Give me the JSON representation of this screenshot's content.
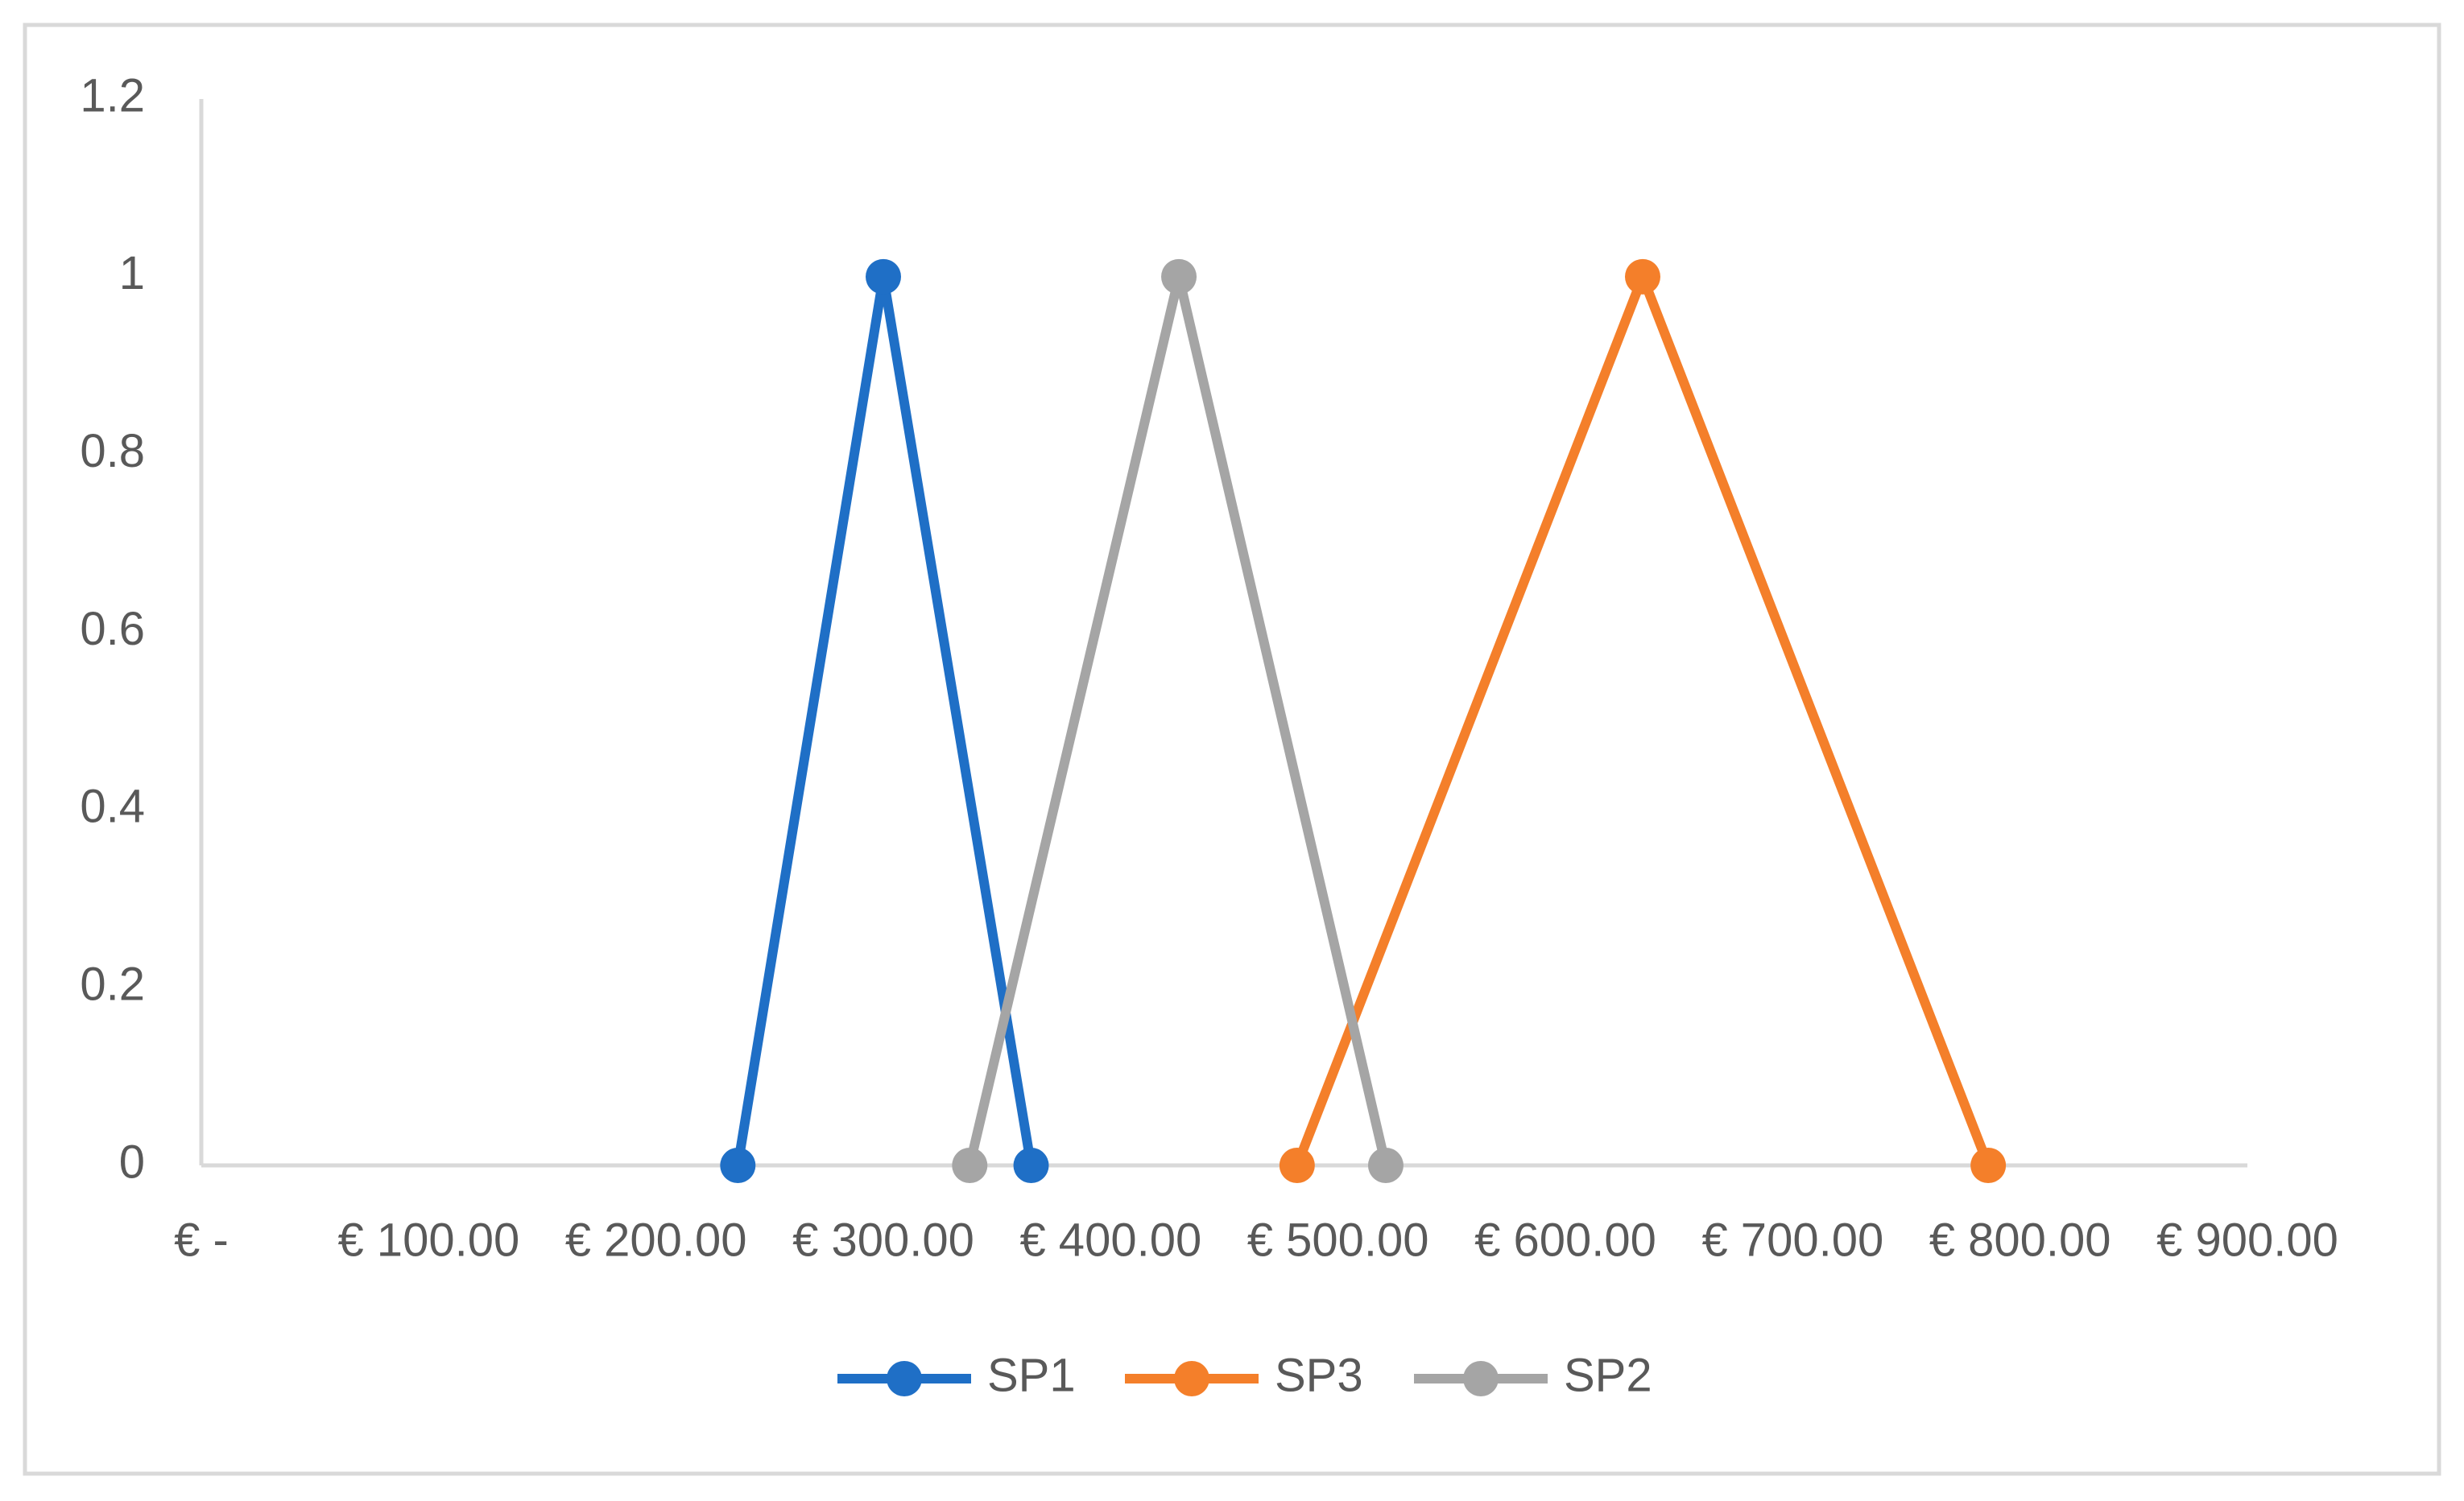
{
  "chart_data": {
    "type": "line",
    "xlim": [
      0,
      900
    ],
    "xticks": [
      {
        "value": 0,
        "label": "€ -"
      },
      {
        "value": 100,
        "label": "€ 100.00"
      },
      {
        "value": 200,
        "label": "€ 200.00"
      },
      {
        "value": 300,
        "label": "€ 300.00"
      },
      {
        "value": 400,
        "label": "€ 400.00"
      },
      {
        "value": 500,
        "label": "€ 500.00"
      },
      {
        "value": 600,
        "label": "€ 600.00"
      },
      {
        "value": 700,
        "label": "€ 700.00"
      },
      {
        "value": 800,
        "label": "€ 800.00"
      },
      {
        "value": 900,
        "label": "€ 900.00"
      }
    ],
    "ylim": [
      0,
      1.2
    ],
    "yticks": [
      0,
      0.2,
      0.4,
      0.6,
      0.8,
      1,
      1.2
    ],
    "grid": false,
    "legend": "bottom",
    "series": [
      {
        "name": "SP1",
        "color": "#1f6fc6",
        "x": [
          236,
          300,
          365
        ],
        "values": [
          0,
          1,
          0
        ]
      },
      {
        "name": "SP3",
        "color": "#f47f2a",
        "x": [
          482,
          634,
          786
        ],
        "values": [
          0,
          1,
          0
        ]
      },
      {
        "name": "SP2",
        "color": "#a5a5a5",
        "x": [
          338,
          430,
          521
        ],
        "values": [
          0,
          1,
          0
        ]
      }
    ]
  }
}
